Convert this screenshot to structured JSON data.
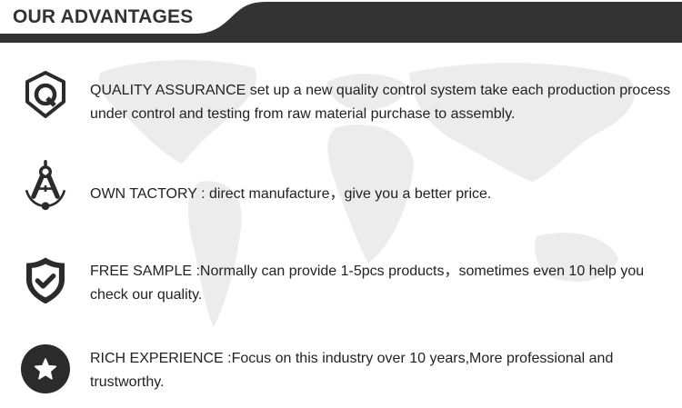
{
  "header": {
    "title": "OUR ADVANTAGES",
    "bar_color": "#333333"
  },
  "advantages": [
    {
      "icon": "shield-q-icon",
      "text": "QUALITY ASSURANCE set up a new quality control system take each production process under control and testing from raw material purchase to assembly."
    },
    {
      "icon": "compass-icon",
      "text": "OWN TACTORY : direct manufacture，give you a better price."
    },
    {
      "icon": "shield-check-icon",
      "text": "FREE SAMPLE :Normally can provide 1-5pcs products，sometimes even 10 help you check our quality."
    },
    {
      "icon": "star-circle-icon",
      "text": "RICH EXPERIENCE :Focus on this industry over 10 years,More professional and trustworthy."
    }
  ]
}
